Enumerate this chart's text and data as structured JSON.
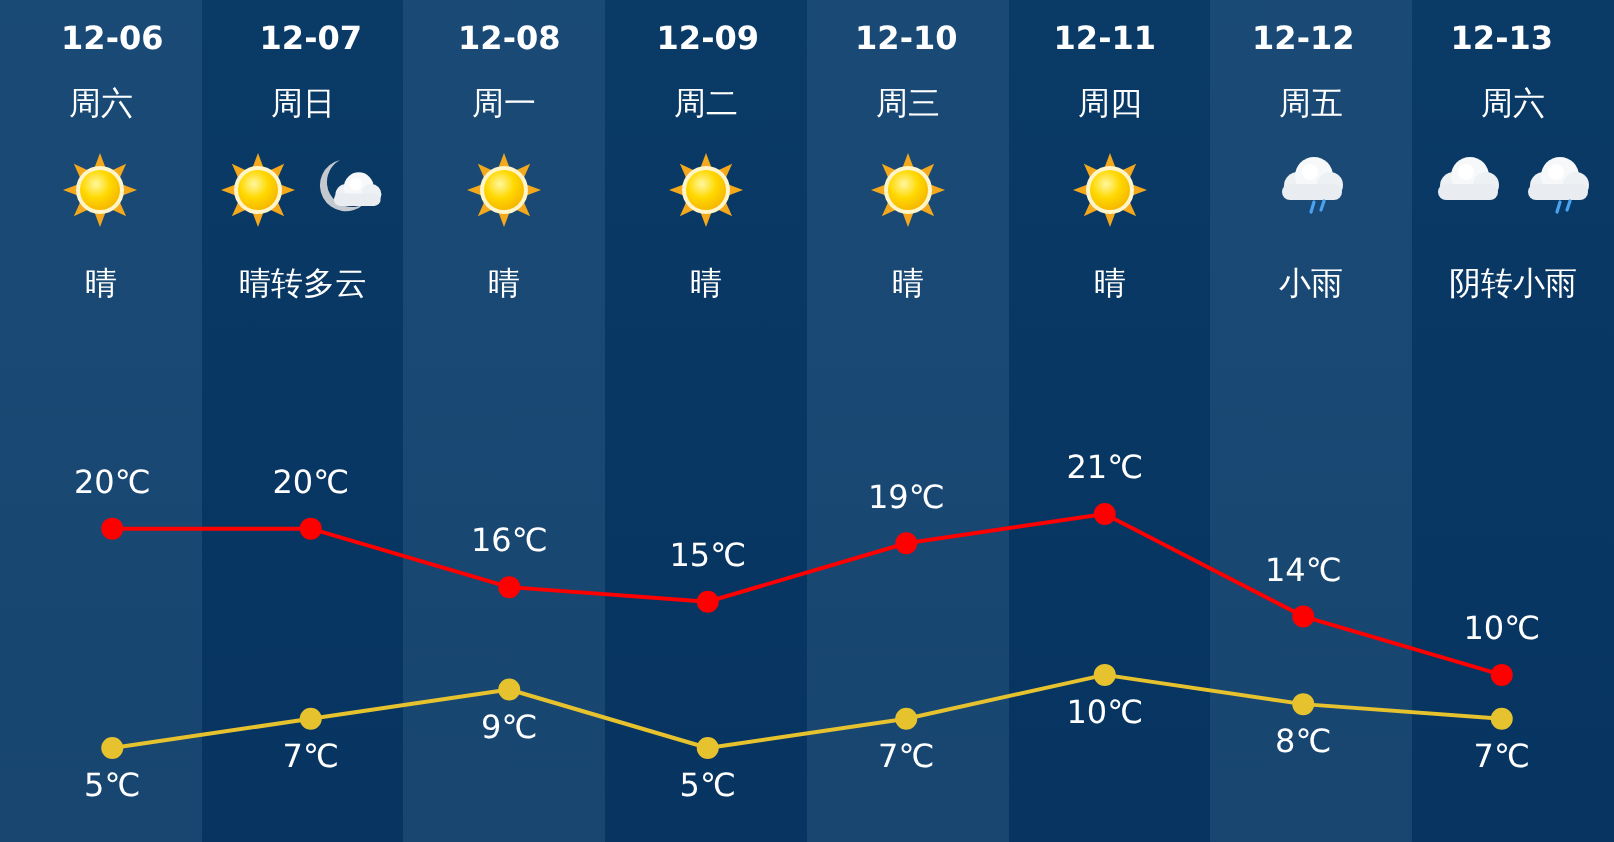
{
  "chart_data": {
    "type": "line",
    "categories": [
      "12-06",
      "12-07",
      "12-08",
      "12-09",
      "12-10",
      "12-11",
      "12-12",
      "12-13"
    ],
    "series": [
      {
        "color": "#ff0000",
        "values": [
          20,
          20,
          16,
          15,
          19,
          21,
          14,
          10
        ],
        "value_labels": [
          "20℃",
          "20℃",
          "16℃",
          "15℃",
          "19℃",
          "21℃",
          "14℃",
          "10℃"
        ]
      },
      {
        "color": "#e6c22e",
        "values": [
          5,
          7,
          9,
          5,
          7,
          10,
          8,
          7
        ],
        "value_labels": [
          "5℃",
          "7℃",
          "9℃",
          "5℃",
          "7℃",
          "10℃",
          "8℃",
          "7℃"
        ]
      }
    ],
    "tick_labels": "x",
    "marker": "circle",
    "line_style": "solid",
    "annotations": [
      "周六",
      "周日",
      "周一",
      "周二",
      "周三",
      "周四",
      "周五",
      "周六",
      "晴",
      "晴转多云",
      "晴",
      "晴",
      "晴",
      "晴",
      "小雨",
      "阴转小雨"
    ]
  }
}
